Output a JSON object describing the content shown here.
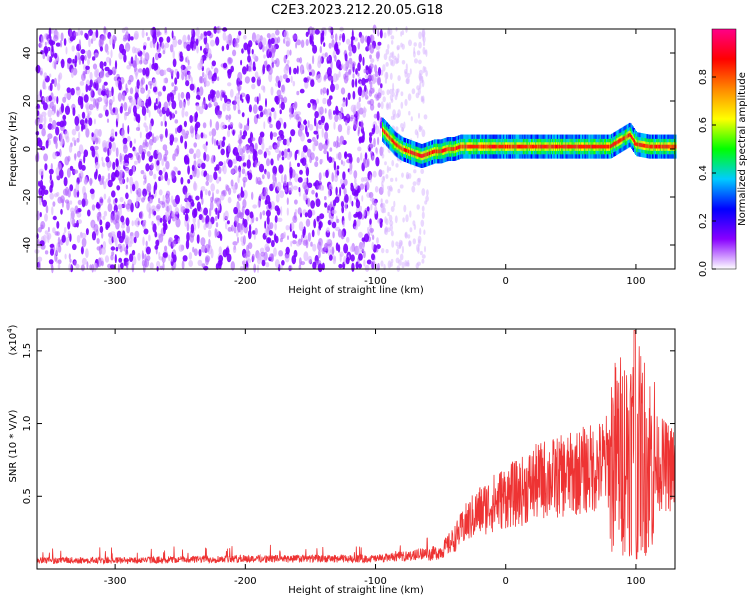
{
  "title": "C2E3.2023.212.20.05.G18",
  "chart_data": [
    {
      "type": "heatmap",
      "xlabel": "Height of straight line (km)",
      "ylabel": "Frequency (Hz)",
      "xlim": [
        -360,
        130
      ],
      "ylim": [
        -50,
        50
      ],
      "xticks": [
        -300,
        -200,
        -100,
        0,
        100
      ],
      "yticks": [
        -40,
        -20,
        0,
        20,
        40
      ],
      "colorbar": {
        "label": "Normalized spectral amplitude",
        "range": [
          0.0,
          1.0
        ],
        "ticks": [
          0.0,
          0.2,
          0.4,
          0.6,
          0.8
        ],
        "tick_labels": [
          "0.0",
          "0.2",
          "0.4",
          "0.6",
          "0.8"
        ],
        "colors": [
          "#ffffff",
          "#8800ff",
          "#0000ff",
          "#00ccff",
          "#00ff00",
          "#ffff00",
          "#ff8800",
          "#ff0000",
          "#ff0088"
        ]
      },
      "description_regions": [
        {
          "x": [
            -360,
            -95
          ],
          "freq": [
            -50,
            50
          ],
          "amplitude": [
            0.0,
            0.25
          ]
        },
        {
          "x": [
            -95,
            -60
          ],
          "freq": [
            -50,
            50
          ],
          "amplitude": [
            0.0,
            0.1
          ]
        },
        {
          "x": [
            -95,
            130
          ],
          "freq": [
            -2,
            8
          ],
          "amplitude": [
            0.3,
            1.0
          ]
        }
      ],
      "signal_ridge": {
        "x": [
          -95,
          -90,
          -85,
          -80,
          -75,
          -70,
          -65,
          -60,
          -55,
          -50,
          -45,
          -40,
          -35,
          -30,
          -20,
          0,
          20,
          40,
          60,
          80,
          95,
          100,
          110,
          120,
          130
        ],
        "freq": [
          8,
          5,
          2,
          0,
          -1,
          -2,
          -3,
          -2,
          -1,
          -1,
          0,
          0,
          1,
          1,
          1,
          1,
          1,
          1,
          1,
          1,
          6,
          2,
          1,
          1,
          1
        ]
      }
    },
    {
      "type": "line",
      "xlabel": "Height of straight line (km)",
      "ylabel": "SNR (10 * V/V)",
      "yscale_label": "(x10",
      "yscale_exp": "4",
      "yscale_close": ")",
      "xlim": [
        -360,
        130
      ],
      "ylim": [
        0,
        16500
      ],
      "xticks": [
        -300,
        -200,
        -100,
        0,
        100
      ],
      "yticks": [
        5000,
        10000,
        15000
      ],
      "ytick_labels": [
        "0.5",
        "1.0",
        "1.5"
      ],
      "color": "#ee3333",
      "envelope": {
        "x": [
          -360,
          -300,
          -200,
          -100,
          -70,
          -50,
          -40,
          -30,
          -20,
          -10,
          0,
          10,
          20,
          30,
          40,
          50,
          60,
          70,
          80,
          90,
          95,
          100,
          105,
          110,
          120,
          130
        ],
        "y": [
          500,
          500,
          600,
          600,
          800,
          1200,
          2000,
          3200,
          4000,
          4500,
          5000,
          5200,
          5800,
          6200,
          6300,
          6500,
          6800,
          7000,
          7500,
          8000,
          8500,
          8200,
          8000,
          7500,
          7200,
          6800
        ]
      }
    }
  ]
}
